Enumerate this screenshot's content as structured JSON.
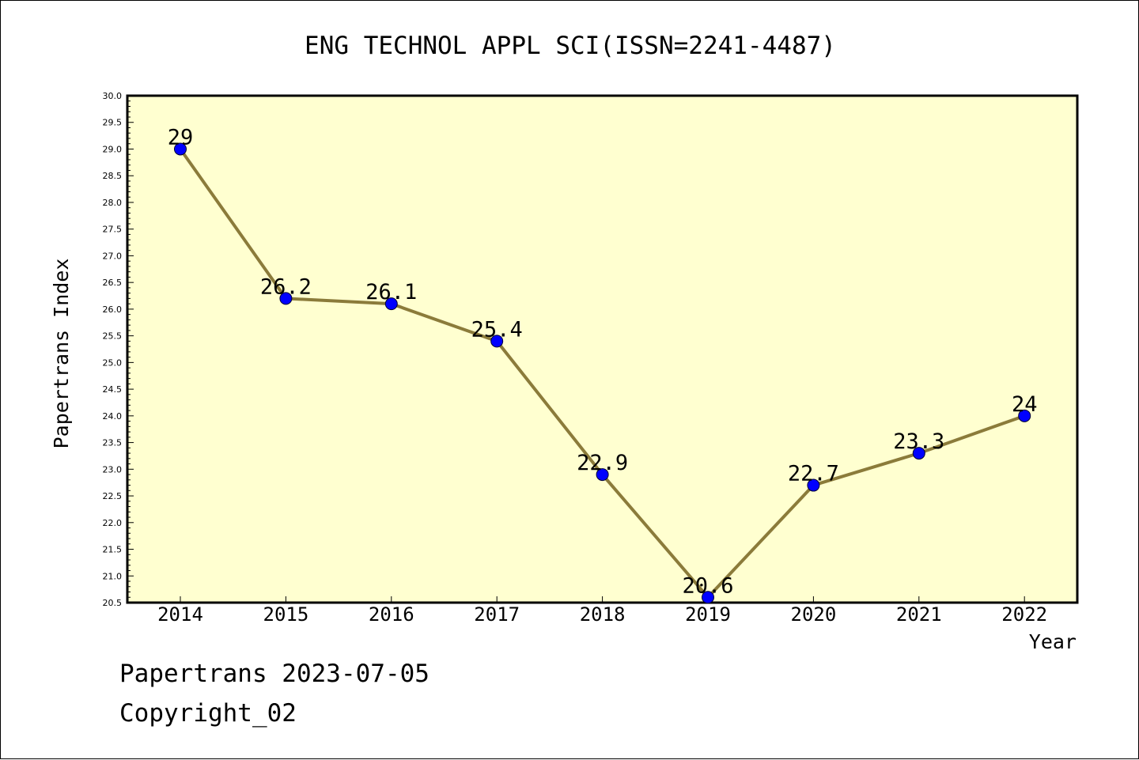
{
  "chart_data": {
    "type": "line",
    "title": "ENG TECHNOL APPL SCI(ISSN=2241-4487)",
    "xlabel": "Year",
    "ylabel": "Papertrans Index",
    "x": [
      "2014",
      "2015",
      "2016",
      "2017",
      "2018",
      "2019",
      "2020",
      "2021",
      "2022"
    ],
    "series": [
      {
        "values": [
          29,
          26.2,
          26.1,
          25.4,
          22.9,
          20.6,
          22.7,
          23.3,
          24
        ],
        "value_labels": [
          "29",
          "26.2",
          "26.1",
          "25.4",
          "22.9",
          "20.6",
          "22.7",
          "23.3",
          "24"
        ]
      }
    ],
    "ylim": [
      20.5,
      30.0
    ],
    "y_major_step": 0.5,
    "y_tick_labels": [
      "20.5",
      "21.0",
      "21.5",
      "22.0",
      "22.5",
      "23.0",
      "23.5",
      "24.0",
      "24.5",
      "25.0",
      "25.5",
      "26.0",
      "26.5",
      "27.0",
      "27.5",
      "28.0",
      "28.5",
      "29.0",
      "29.5",
      "30.0"
    ],
    "grid": false,
    "legend": "none",
    "colors": {
      "plot_background": "#ffffd0",
      "line": "#8b7b3a",
      "marker": "#0000ff",
      "axis": "#000000"
    }
  },
  "footer": {
    "date_line": "Papertrans 2023-07-05",
    "copyright_line": "Copyright_02"
  }
}
